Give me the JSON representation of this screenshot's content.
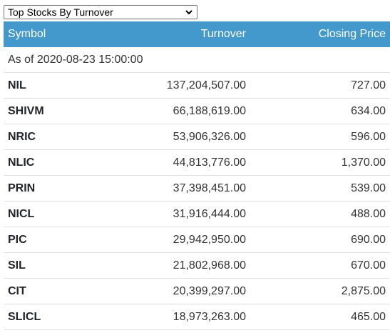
{
  "selector": {
    "selected": "Top Stocks By Turnover",
    "icon": "chevron-down-icon"
  },
  "table": {
    "headers": {
      "symbol": "Symbol",
      "turnover": "Turnover",
      "closing_price": "Closing Price"
    },
    "as_of": "As of 2020-08-23 15:00:00",
    "rows": [
      {
        "symbol": "NIL",
        "turnover": "137,204,507.00",
        "closing_price": "727.00"
      },
      {
        "symbol": "SHIVM",
        "turnover": "66,188,619.00",
        "closing_price": "634.00"
      },
      {
        "symbol": "NRIC",
        "turnover": "53,906,326.00",
        "closing_price": "596.00"
      },
      {
        "symbol": "NLIC",
        "turnover": "44,813,776.00",
        "closing_price": "1,370.00"
      },
      {
        "symbol": "PRIN",
        "turnover": "37,398,451.00",
        "closing_price": "539.00"
      },
      {
        "symbol": "NICL",
        "turnover": "31,916,444.00",
        "closing_price": "488.00"
      },
      {
        "symbol": "PIC",
        "turnover": "29,942,950.00",
        "closing_price": "690.00"
      },
      {
        "symbol": "SIL",
        "turnover": "21,802,968.00",
        "closing_price": "670.00"
      },
      {
        "symbol": "CIT",
        "turnover": "20,399,297.00",
        "closing_price": "2,875.00"
      },
      {
        "symbol": "SLICL",
        "turnover": "18,973,263.00",
        "closing_price": "465.00"
      }
    ]
  },
  "colors": {
    "header_bg": "#4499cc",
    "header_text": "#ffffff",
    "row_border": "#dee2e6"
  }
}
